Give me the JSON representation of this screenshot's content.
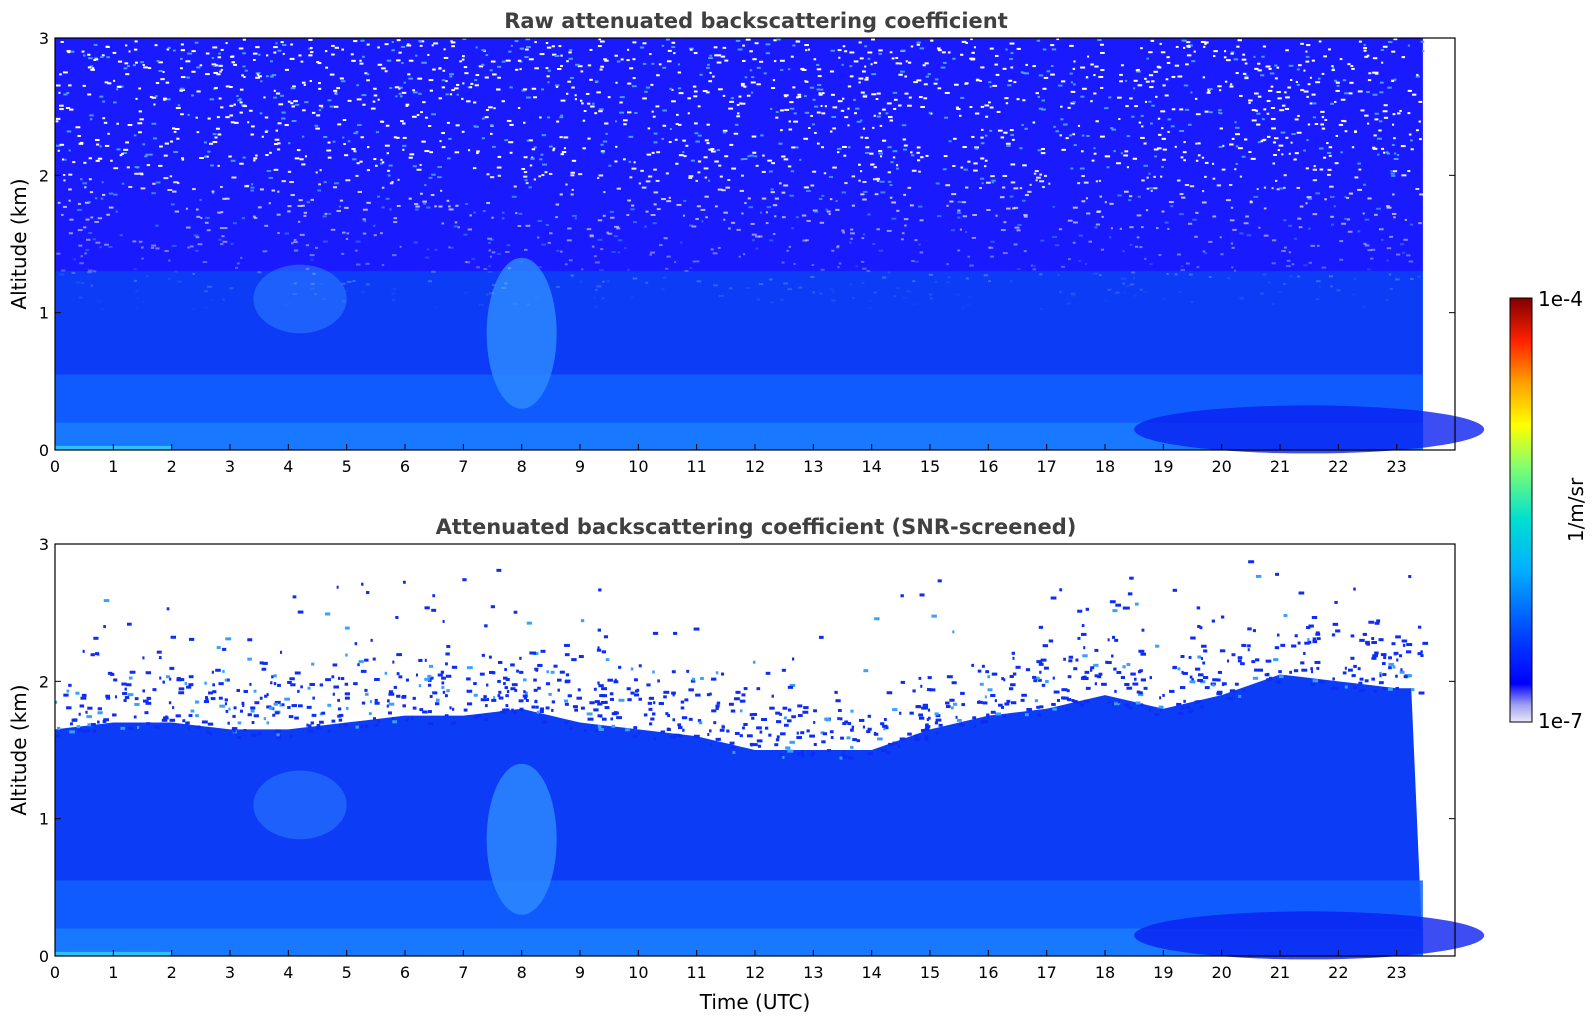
{
  "chart_data": [
    {
      "type": "heatmap",
      "title": "Raw attenuated backscattering coefficient",
      "xlabel": "",
      "ylabel": "Altitude (km)",
      "xlim": [
        0,
        24
      ],
      "ylim": [
        0,
        3
      ],
      "data_x_range": [
        0,
        23.45
      ],
      "xticks": [
        0,
        1,
        2,
        3,
        4,
        5,
        6,
        7,
        8,
        9,
        10,
        11,
        12,
        13,
        14,
        15,
        16,
        17,
        18,
        19,
        20,
        21,
        22,
        23
      ],
      "yticks": [
        0,
        1,
        2,
        3
      ],
      "screened": false,
      "notes": "Backscatter strongest (light blue, ~1e-6) below 0.5 km; aerosol plume near 8 UTC up to ~1.6 km; noisy speckle above ~1.3 km"
    },
    {
      "type": "heatmap",
      "title": "Attenuated backscattering coefficient (SNR-screened)",
      "xlabel": "Time (UTC)",
      "ylabel": "Altitude (km)",
      "xlim": [
        0,
        24
      ],
      "ylim": [
        0,
        3
      ],
      "data_x_range": [
        0,
        23.45
      ],
      "xticks": [
        0,
        1,
        2,
        3,
        4,
        5,
        6,
        7,
        8,
        9,
        10,
        11,
        12,
        13,
        14,
        15,
        16,
        17,
        18,
        19,
        20,
        21,
        22,
        23
      ],
      "yticks": [
        0,
        1,
        2,
        3
      ],
      "screened": true,
      "boundary_layer_top_km": [
        [
          0,
          1.75
        ],
        [
          1,
          1.8
        ],
        [
          2,
          1.8
        ],
        [
          3,
          1.75
        ],
        [
          4,
          1.75
        ],
        [
          5,
          1.8
        ],
        [
          6,
          1.85
        ],
        [
          7,
          1.85
        ],
        [
          8,
          1.9
        ],
        [
          9,
          1.8
        ],
        [
          10,
          1.75
        ],
        [
          11,
          1.7
        ],
        [
          12,
          1.6
        ],
        [
          13,
          1.6
        ],
        [
          14,
          1.6
        ],
        [
          15,
          1.75
        ],
        [
          16,
          1.85
        ],
        [
          17,
          1.9
        ],
        [
          18,
          2.0
        ],
        [
          19,
          1.9
        ],
        [
          20,
          2.0
        ],
        [
          21,
          2.15
        ],
        [
          22,
          2.1
        ],
        [
          23,
          2.05
        ]
      ]
    }
  ],
  "colorbar": {
    "label": "1/m/sr",
    "max_label": "1e-4",
    "min_label": "1e-7",
    "colormap": "jet",
    "scale": "log",
    "range": [
      1e-07,
      0.0001
    ]
  }
}
